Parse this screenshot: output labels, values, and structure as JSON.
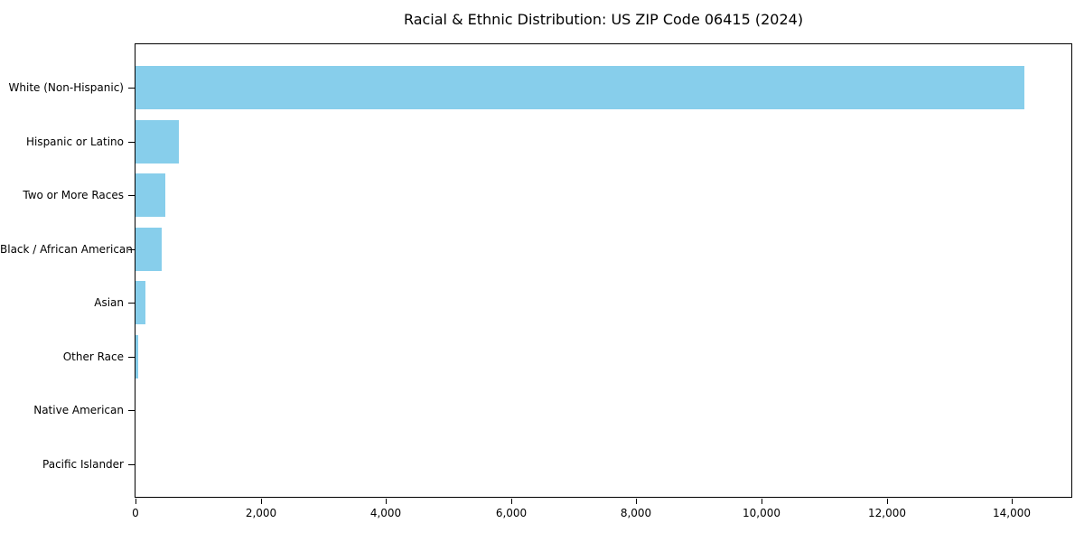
{
  "chart_data": {
    "type": "bar",
    "orientation": "horizontal",
    "title": "Racial & Ethnic Distribution: US ZIP Code 06415 (2024)",
    "categories": [
      "White (Non-Hispanic)",
      "Hispanic or Latino",
      "Two or More Races",
      "Black / African American",
      "Asian",
      "Other Race",
      "Native American",
      "Pacific Islander"
    ],
    "values": [
      14200,
      690,
      475,
      420,
      160,
      45,
      0,
      0
    ],
    "xlabel": "",
    "ylabel": "",
    "xlim": [
      0,
      14950
    ],
    "x_ticks": [
      0,
      2000,
      4000,
      6000,
      8000,
      10000,
      12000,
      14000
    ],
    "x_tick_labels": [
      "0",
      "2,000",
      "4,000",
      "6,000",
      "8,000",
      "10,000",
      "12,000",
      "14,000"
    ],
    "bar_color": "#87CEEB",
    "grid": false,
    "legend": null
  }
}
